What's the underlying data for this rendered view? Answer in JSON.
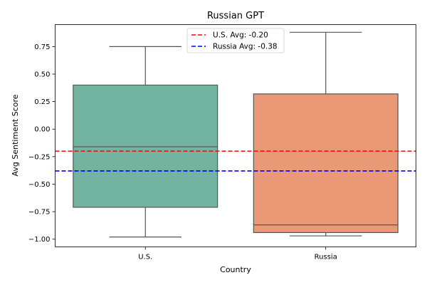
{
  "chart_data": {
    "type": "box",
    "title": "Russian GPT",
    "xlabel": "Country",
    "ylabel": "Avg Sentiment Score",
    "ylim": [
      -1.07,
      0.95
    ],
    "yticks": [
      -1.0,
      -0.75,
      -0.5,
      -0.25,
      0.0,
      0.25,
      0.5,
      0.75
    ],
    "ytick_labels": [
      "−1.00",
      "−0.75",
      "−0.50",
      "−0.25",
      "0.00",
      "0.25",
      "0.50",
      "0.75"
    ],
    "categories": [
      "U.S.",
      "Russia"
    ],
    "boxes": [
      {
        "category": "U.S.",
        "whisker_low": -0.98,
        "q1": -0.71,
        "median": -0.16,
        "q3": 0.4,
        "whisker_high": 0.75,
        "color": "#73b4a0"
      },
      {
        "category": "Russia",
        "whisker_low": -0.97,
        "q1": -0.94,
        "median": -0.87,
        "q3": 0.32,
        "whisker_high": 0.88,
        "color": "#e99975"
      }
    ],
    "reference_lines": [
      {
        "label": "U.S. Avg: -0.20",
        "value": -0.2,
        "color": "#ff0000",
        "style": "dashed"
      },
      {
        "label": "Russia Avg: -0.38",
        "value": -0.38,
        "color": "#0000ff",
        "style": "dashed"
      }
    ],
    "legend_position": "top-center",
    "grid": false
  }
}
